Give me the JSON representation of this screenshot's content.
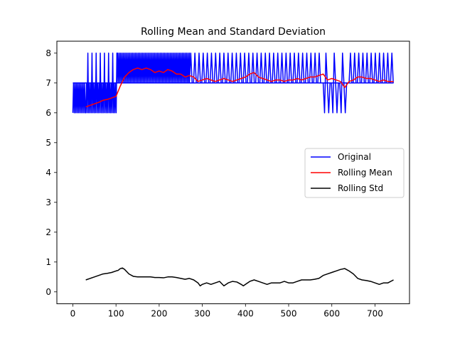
{
  "chart_data": {
    "type": "line",
    "title": "Rolling Mean and Standard Deviation",
    "xlabel": "",
    "ylabel": "",
    "xlim": [
      -37,
      780
    ],
    "ylim": [
      -0.4,
      8.4
    ],
    "xticks": [
      0,
      100,
      200,
      300,
      400,
      500,
      600,
      700
    ],
    "yticks": [
      0,
      1,
      2,
      3,
      4,
      5,
      6,
      7,
      8
    ],
    "grid": false,
    "legend": "center-right",
    "original_pattern": [
      [
        0,
        743,
        7,
        "base"
      ],
      [
        0,
        30,
        6,
        "dense-6-7"
      ],
      [
        30,
        102,
        6,
        "dense-6-7-8"
      ],
      [
        102,
        270,
        8,
        "dense-7-8"
      ],
      [
        270,
        580,
        8,
        "sparse-7-8"
      ],
      [
        580,
        640,
        6,
        "sparse-6-7-8"
      ],
      [
        640,
        743,
        8,
        "sparse-7-8"
      ]
    ],
    "series": [
      {
        "name": "Original",
        "color": "#0000ff",
        "x": [
          0,
          5,
          8,
          12,
          16,
          20,
          24,
          28,
          33,
          37,
          42,
          46,
          50,
          55,
          60,
          64,
          66,
          69,
          72,
          76,
          80,
          84,
          88,
          92,
          96,
          100,
          103,
          107,
          110,
          114,
          118,
          122,
          126,
          130,
          134,
          138,
          142,
          146,
          150,
          154,
          158,
          162,
          166,
          170,
          174,
          178,
          182,
          186,
          190,
          194,
          198,
          202,
          206,
          210,
          214,
          218,
          222,
          226,
          230,
          234,
          238,
          242,
          246,
          250,
          254,
          258,
          262,
          266,
          270,
          278,
          286,
          294,
          302,
          310,
          318,
          326,
          334,
          342,
          350,
          358,
          366,
          374,
          382,
          390,
          398,
          406,
          414,
          422,
          430,
          438,
          446,
          454,
          462,
          470,
          478,
          486,
          494,
          502,
          510,
          518,
          526,
          534,
          542,
          550,
          558,
          566,
          574,
          580,
          584,
          588,
          592,
          596,
          600,
          604,
          608,
          612,
          616,
          620,
          624,
          628,
          632,
          636,
          640,
          648,
          656,
          664,
          672,
          680,
          688,
          696,
          704,
          712,
          720,
          728,
          736,
          738,
          740,
          743
        ],
        "values": [
          6,
          7,
          6,
          7,
          6,
          7,
          6,
          7,
          6,
          7,
          6,
          7,
          6,
          7,
          6,
          8,
          6,
          8,
          7,
          6,
          8,
          6,
          7,
          6,
          8,
          6,
          7,
          8,
          7,
          8,
          7,
          8,
          7,
          8,
          7,
          8,
          7,
          8,
          7,
          8,
          7,
          8,
          7,
          8,
          7,
          8,
          7,
          8,
          7,
          8,
          7,
          8,
          7,
          8,
          7,
          8,
          7,
          8,
          7,
          8,
          7,
          8,
          7,
          8,
          7,
          8,
          7,
          8,
          7,
          8,
          7,
          7,
          8,
          7,
          7,
          8,
          7,
          8,
          7,
          7,
          8,
          7,
          7,
          7,
          8,
          7,
          8,
          7,
          8,
          7,
          7,
          8,
          7,
          8,
          7,
          8,
          7,
          7,
          8,
          7,
          8,
          7,
          8,
          7,
          7,
          8,
          7,
          8,
          6,
          7,
          6,
          8,
          7,
          6,
          8,
          7,
          6,
          8,
          6,
          7,
          8,
          6,
          7,
          8,
          7,
          8,
          7,
          8,
          7,
          7,
          8,
          7,
          8,
          7,
          6,
          8,
          7,
          8
        ]
      },
      {
        "name": "Rolling Mean",
        "color": "#ff0000",
        "x": [
          30,
          40,
          50,
          60,
          70,
          80,
          90,
          100,
          110,
          120,
          130,
          140,
          150,
          160,
          170,
          180,
          190,
          200,
          210,
          220,
          230,
          240,
          250,
          260,
          270,
          280,
          290,
          300,
          310,
          320,
          330,
          340,
          350,
          360,
          370,
          380,
          390,
          400,
          410,
          420,
          430,
          440,
          450,
          460,
          470,
          480,
          490,
          500,
          510,
          520,
          530,
          540,
          550,
          560,
          570,
          580,
          590,
          600,
          610,
          620,
          630,
          640,
          650,
          660,
          670,
          680,
          690,
          700,
          710,
          720,
          730,
          743
        ],
        "values": [
          6.2,
          6.25,
          6.3,
          6.35,
          6.42,
          6.45,
          6.5,
          6.55,
          6.9,
          7.2,
          7.35,
          7.45,
          7.5,
          7.45,
          7.5,
          7.45,
          7.35,
          7.4,
          7.35,
          7.45,
          7.4,
          7.3,
          7.3,
          7.2,
          7.25,
          7.2,
          7.05,
          7.1,
          7.15,
          7.1,
          7.05,
          7.1,
          7.15,
          7.1,
          7.05,
          7.1,
          7.15,
          7.2,
          7.3,
          7.35,
          7.2,
          7.15,
          7.1,
          7.05,
          7.1,
          7.1,
          7.05,
          7.1,
          7.1,
          7.15,
          7.1,
          7.15,
          7.2,
          7.2,
          7.25,
          7.3,
          7.1,
          7.15,
          7.1,
          7.05,
          6.85,
          7.05,
          7.1,
          7.2,
          7.2,
          7.15,
          7.15,
          7.1,
          7.05,
          7.1,
          7.05,
          7.05
        ]
      },
      {
        "name": "Rolling Std",
        "color": "#000000",
        "x": [
          30,
          40,
          50,
          60,
          70,
          80,
          90,
          100,
          105,
          110,
          115,
          120,
          130,
          140,
          150,
          160,
          170,
          180,
          190,
          200,
          210,
          220,
          230,
          240,
          250,
          260,
          270,
          280,
          290,
          295,
          300,
          310,
          320,
          330,
          340,
          350,
          360,
          370,
          380,
          390,
          395,
          400,
          410,
          420,
          430,
          440,
          450,
          460,
          470,
          480,
          490,
          500,
          510,
          520,
          530,
          540,
          550,
          560,
          570,
          580,
          590,
          600,
          610,
          620,
          630,
          640,
          650,
          660,
          670,
          680,
          690,
          700,
          710,
          720,
          730,
          743
        ],
        "values": [
          0.4,
          0.45,
          0.5,
          0.55,
          0.6,
          0.62,
          0.65,
          0.7,
          0.72,
          0.78,
          0.8,
          0.75,
          0.6,
          0.52,
          0.5,
          0.5,
          0.5,
          0.5,
          0.48,
          0.48,
          0.47,
          0.5,
          0.5,
          0.48,
          0.45,
          0.42,
          0.45,
          0.4,
          0.3,
          0.2,
          0.25,
          0.3,
          0.25,
          0.3,
          0.35,
          0.2,
          0.3,
          0.35,
          0.33,
          0.25,
          0.2,
          0.25,
          0.35,
          0.4,
          0.35,
          0.3,
          0.25,
          0.3,
          0.3,
          0.3,
          0.35,
          0.3,
          0.3,
          0.35,
          0.4,
          0.4,
          0.4,
          0.42,
          0.45,
          0.55,
          0.6,
          0.65,
          0.7,
          0.75,
          0.78,
          0.7,
          0.6,
          0.45,
          0.4,
          0.38,
          0.35,
          0.3,
          0.25,
          0.3,
          0.3,
          0.4
        ]
      }
    ]
  }
}
